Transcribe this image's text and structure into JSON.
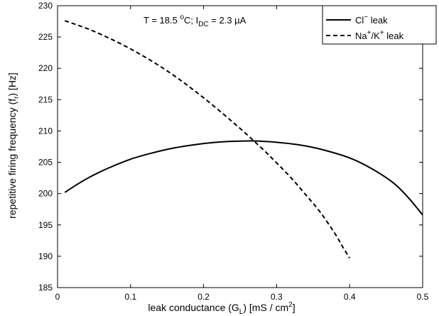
{
  "chart_data": {
    "type": "line",
    "annotation": {
      "prefix": "T = 18.5 ",
      "deg": "o",
      "after_deg": "C; I",
      "sub": "DC",
      "after_sub": " = 2.3 µA"
    },
    "xlabel": {
      "prefix": "leak conductance (G",
      "sub": "L",
      "mid": ") [mS / cm",
      "sup": "2",
      "suffix": "]"
    },
    "ylabel": {
      "prefix": "repetitive firing frequency (f",
      "sub": "r",
      "suffix": ") [Hz]"
    },
    "xlim": [
      0,
      0.5
    ],
    "ylim": [
      185,
      230
    ],
    "xticks": [
      0,
      0.1,
      0.2,
      0.3,
      0.4,
      0.5
    ],
    "xtick_labels": [
      "0",
      "0.1",
      "0.2",
      "0.3",
      "0.4",
      "0.5"
    ],
    "yticks": [
      185,
      190,
      195,
      200,
      205,
      210,
      215,
      220,
      225,
      230
    ],
    "ytick_labels": [
      "185",
      "190",
      "195",
      "200",
      "205",
      "210",
      "215",
      "220",
      "225",
      "230"
    ],
    "grid": false,
    "legend_position": "top-right",
    "series": [
      {
        "name": "Cl⁻ leak",
        "legend": {
          "prefix": "Cl",
          "sup": "−",
          "suffix": " leak"
        },
        "style": "solid",
        "color": "#000000",
        "x": [
          0.01,
          0.03,
          0.05,
          0.07,
          0.1,
          0.13,
          0.16,
          0.2,
          0.23,
          0.26,
          0.27,
          0.3,
          0.33,
          0.36,
          0.4,
          0.43,
          0.46,
          0.48,
          0.5
        ],
        "y": [
          200.2,
          201.7,
          203.0,
          204.1,
          205.5,
          206.5,
          207.3,
          208.0,
          208.3,
          208.4,
          208.4,
          208.2,
          207.8,
          207.1,
          205.7,
          204.0,
          201.7,
          199.4,
          196.6
        ]
      },
      {
        "name": "Na⁺/K⁺ leak",
        "legend": {
          "p1": "Na",
          "s1": "+",
          "p2": "/K",
          "s2": "+",
          "p3": " leak"
        },
        "style": "dashed",
        "color": "#000000",
        "x": [
          0.01,
          0.05,
          0.1,
          0.15,
          0.2,
          0.25,
          0.28,
          0.3,
          0.32,
          0.34,
          0.36,
          0.38,
          0.39,
          0.4
        ],
        "y": [
          227.6,
          225.9,
          223.1,
          219.6,
          215.3,
          210.4,
          207.2,
          204.9,
          202.5,
          199.8,
          197.0,
          193.6,
          191.6,
          189.7
        ]
      }
    ]
  }
}
